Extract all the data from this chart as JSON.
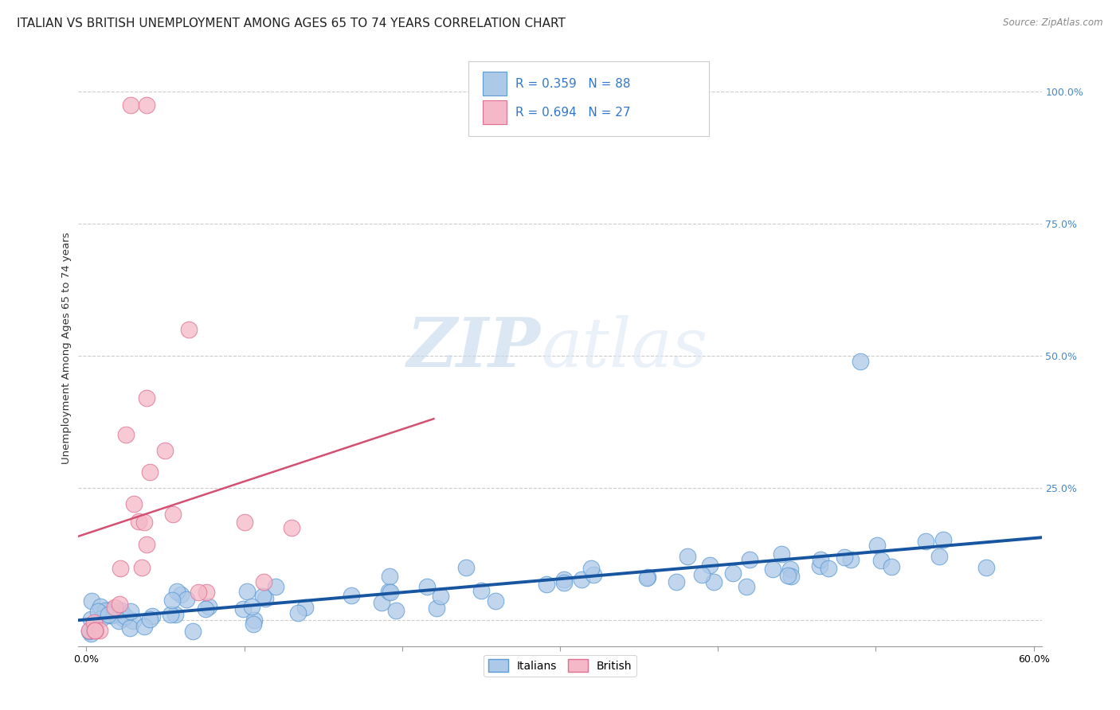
{
  "title": "ITALIAN VS BRITISH UNEMPLOYMENT AMONG AGES 65 TO 74 YEARS CORRELATION CHART",
  "source": "Source: ZipAtlas.com",
  "ylabel": "Unemployment Among Ages 65 to 74 years",
  "xlim": [
    -0.005,
    0.605
  ],
  "ylim": [
    -0.05,
    1.08
  ],
  "ytick_vals": [
    0.0,
    0.25,
    0.5,
    0.75,
    1.0
  ],
  "ytick_labels": [
    "",
    "25.0%",
    "50.0%",
    "75.0%",
    "100.0%"
  ],
  "xtick_vals": [
    0.0,
    0.1,
    0.2,
    0.3,
    0.4,
    0.5,
    0.6
  ],
  "xtick_labels": [
    "0.0%",
    "",
    "",
    "",
    "",
    "",
    "60.0%"
  ],
  "italian_color": "#adc9e8",
  "italian_edge": "#5b9bd5",
  "british_color": "#f4b8c8",
  "british_edge": "#e07090",
  "italian_R": 0.359,
  "italian_N": 88,
  "british_R": 0.694,
  "british_N": 27,
  "italian_line_color": "#1855a0",
  "british_line_color": "#d45070",
  "watermark_zip": "ZIP",
  "watermark_atlas": "atlas",
  "watermark_color": "#d0dff0",
  "legend_label1": "Italians",
  "legend_label2": "British",
  "background_color": "#ffffff",
  "grid_color": "#cccccc",
  "title_fontsize": 11,
  "axis_label_fontsize": 9.5,
  "tick_fontsize": 9,
  "ytick_color": "#4488cc",
  "source_color": "#888888"
}
